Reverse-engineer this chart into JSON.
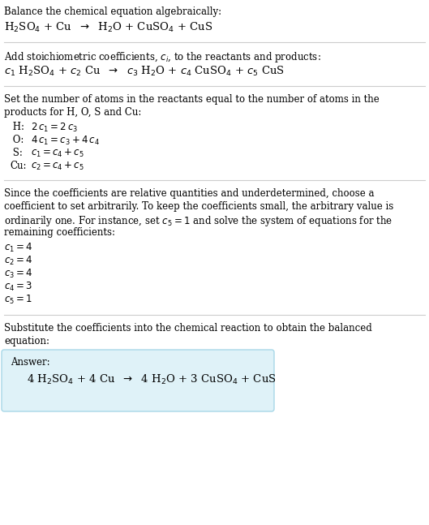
{
  "bg_color": "#ffffff",
  "text_color": "#000000",
  "line_color": "#cccccc",
  "answer_box_fill": "#dff2f8",
  "answer_box_edge": "#a8d8e8",
  "font_size": 8.5,
  "font_size_eq": 9.5,
  "sections": [
    {
      "type": "text_then_eq",
      "text": "Balance the chemical equation algebraically:",
      "eq": "H$_2$SO$_4$ + Cu  $\\rightarrow$  H$_2$O + CuSO$_4$ + CuS"
    },
    {
      "type": "text_then_eq",
      "text": "Add stoichiometric coefficients, $c_i$, to the reactants and products:",
      "eq": "$c_1$ H$_2$SO$_4$ + $c_2$ Cu  $\\rightarrow$  $c_3$ H$_2$O + $c_4$ CuSO$_4$ + $c_5$ CuS"
    },
    {
      "type": "atom_balance",
      "lines": [
        "Set the number of atoms in the reactants equal to the number of atoms in the",
        "products for H, O, S and Cu:"
      ],
      "equations": [
        [
          "H:",
          "$2\\,c_1 = 2\\,c_3$"
        ],
        [
          "O:",
          "$4\\,c_1 = c_3 + 4\\,c_4$"
        ],
        [
          "S:",
          "$c_1 = c_4 + c_5$"
        ],
        [
          "Cu:",
          "$c_2 = c_4 + c_5$"
        ]
      ]
    },
    {
      "type": "coeff_section",
      "para_lines": [
        "Since the coefficients are relative quantities and underdetermined, choose a",
        "coefficient to set arbitrarily. To keep the coefficients small, the arbitrary value is",
        "ordinarily one. For instance, set $c_5 = 1$ and solve the system of equations for the",
        "remaining coefficients:"
      ],
      "coefficients": [
        "$c_1 = 4$",
        "$c_2 = 4$",
        "$c_3 = 4$",
        "$c_4 = 3$",
        "$c_5 = 1$"
      ]
    },
    {
      "type": "answer",
      "lines": [
        "Substitute the coefficients into the chemical reaction to obtain the balanced",
        "equation:"
      ],
      "answer_label": "Answer:",
      "answer_eq": "4 H$_2$SO$_4$ + 4 Cu  $\\rightarrow$  4 H$_2$O + 3 CuSO$_4$ + CuS"
    }
  ]
}
